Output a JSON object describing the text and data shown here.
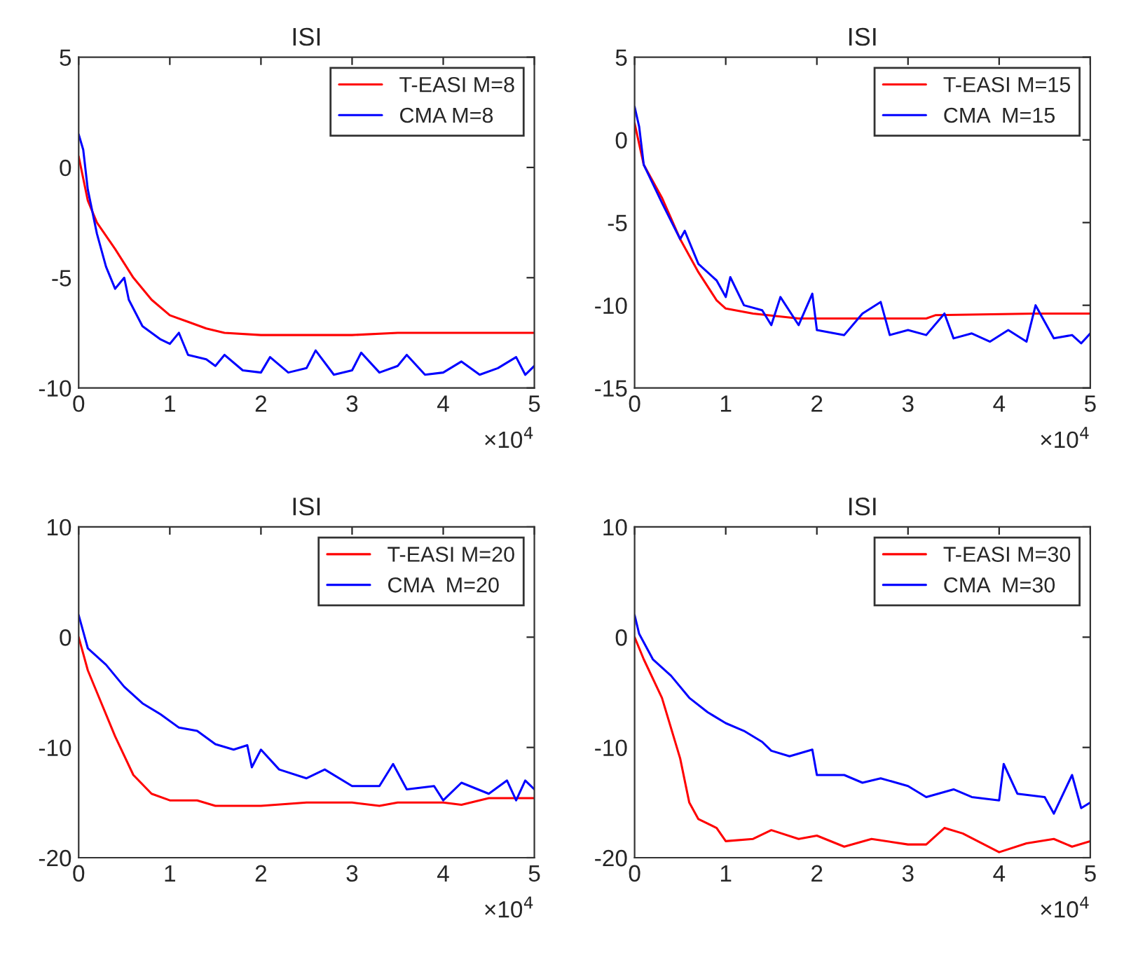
{
  "chart_data": [
    {
      "type": "line",
      "title": "ISI",
      "xlim": [
        0,
        5
      ],
      "ylim": [
        -10,
        5
      ],
      "xticks": [
        0,
        1,
        2,
        3,
        4,
        5
      ],
      "yticks": [
        -10,
        -5,
        0,
        5
      ],
      "annotations": [
        "×10$^{4}$"
      ],
      "legend": "top right",
      "grid": false,
      "series": [
        {
          "name": "T-EASI M=8",
          "color": "#ff0000",
          "x": [
            0,
            0.1,
            0.2,
            0.4,
            0.6,
            0.8,
            1,
            1.2,
            1.4,
            1.6,
            2,
            2.5,
            3,
            3.5,
            4,
            5
          ],
          "values": [
            0.5,
            -1.5,
            -2.5,
            -3.7,
            -5,
            -6,
            -6.7,
            -7,
            -7.3,
            -7.5,
            -7.6,
            -7.6,
            -7.6,
            -7.5,
            -7.5,
            -7.5
          ]
        },
        {
          "name": "CMA M=8",
          "color": "#0000ff",
          "x": [
            0,
            0.05,
            0.1,
            0.2,
            0.3,
            0.4,
            0.5,
            0.55,
            0.7,
            0.9,
            1,
            1.1,
            1.2,
            1.4,
            1.5,
            1.6,
            1.8,
            2,
            2.1,
            2.3,
            2.5,
            2.6,
            2.8,
            3,
            3.1,
            3.3,
            3.5,
            3.6,
            3.8,
            4,
            4.2,
            4.4,
            4.6,
            4.8,
            4.9,
            5
          ],
          "values": [
            1.5,
            0.8,
            -1,
            -3,
            -4.5,
            -5.5,
            -5,
            -6,
            -7.2,
            -7.8,
            -8,
            -7.5,
            -8.5,
            -8.7,
            -9,
            -8.5,
            -9.2,
            -9.3,
            -8.6,
            -9.3,
            -9.1,
            -8.3,
            -9.4,
            -9.2,
            -8.4,
            -9.3,
            -9,
            -8.5,
            -9.4,
            -9.3,
            -8.8,
            -9.4,
            -9.1,
            -8.6,
            -9.4,
            -9
          ]
        }
      ]
    },
    {
      "type": "line",
      "title": "ISI",
      "xlim": [
        0,
        5
      ],
      "ylim": [
        -15,
        5
      ],
      "xticks": [
        0,
        1,
        2,
        3,
        4,
        5
      ],
      "yticks": [
        -15,
        -10,
        -5,
        0,
        5
      ],
      "annotations": [
        "×10$^{4}$"
      ],
      "legend": "top right",
      "grid": false,
      "series": [
        {
          "name": "T-EASI M=15",
          "color": "#ff0000",
          "x": [
            0,
            0.1,
            0.3,
            0.5,
            0.7,
            0.9,
            1,
            1.3,
            1.8,
            2.5,
            3.2,
            3.3,
            4.4,
            5
          ],
          "values": [
            1,
            -1.5,
            -3.5,
            -6,
            -8,
            -9.7,
            -10.2,
            -10.5,
            -10.8,
            -10.8,
            -10.8,
            -10.6,
            -10.5,
            -10.5
          ]
        },
        {
          "name": "CMA  M=15",
          "color": "#0000ff",
          "x": [
            0,
            0.05,
            0.1,
            0.3,
            0.5,
            0.55,
            0.7,
            0.9,
            1,
            1.05,
            1.2,
            1.4,
            1.5,
            1.6,
            1.8,
            1.95,
            2,
            2.3,
            2.5,
            2.7,
            2.8,
            3,
            3.2,
            3.4,
            3.5,
            3.7,
            3.9,
            4.1,
            4.3,
            4.4,
            4.6,
            4.8,
            4.9,
            5
          ],
          "values": [
            2,
            0.8,
            -1.5,
            -3.8,
            -6,
            -5.5,
            -7.5,
            -8.5,
            -9.5,
            -8.3,
            -10,
            -10.3,
            -11.2,
            -9.5,
            -11.2,
            -9.3,
            -11.5,
            -11.8,
            -10.5,
            -9.8,
            -11.8,
            -11.5,
            -11.8,
            -10.5,
            -12,
            -11.7,
            -12.2,
            -11.5,
            -12.2,
            -10,
            -12,
            -11.8,
            -12.3,
            -11.7
          ]
        }
      ]
    },
    {
      "type": "line",
      "title": "ISI",
      "xlim": [
        0,
        5
      ],
      "ylim": [
        -20,
        10
      ],
      "xticks": [
        0,
        1,
        2,
        3,
        4,
        5
      ],
      "yticks": [
        -20,
        -10,
        0,
        10
      ],
      "annotations": [
        "×10$^{4}$"
      ],
      "legend": "top right",
      "grid": false,
      "series": [
        {
          "name": "T-EASI M=20",
          "color": "#ff0000",
          "x": [
            0,
            0.1,
            0.2,
            0.4,
            0.6,
            0.8,
            1,
            1.3,
            1.5,
            2,
            2.5,
            3,
            3.3,
            3.5,
            4,
            4.2,
            4.5,
            5
          ],
          "values": [
            0,
            -3,
            -5,
            -9,
            -12.5,
            -14.2,
            -14.8,
            -14.8,
            -15.3,
            -15.3,
            -15,
            -15,
            -15.3,
            -15,
            -15,
            -15.2,
            -14.6,
            -14.6
          ]
        },
        {
          "name": "CMA  M=20",
          "color": "#0000ff",
          "x": [
            0,
            0.05,
            0.1,
            0.3,
            0.5,
            0.7,
            0.9,
            1.1,
            1.3,
            1.5,
            1.7,
            1.85,
            1.9,
            2,
            2.2,
            2.5,
            2.7,
            3,
            3.3,
            3.45,
            3.6,
            3.9,
            4,
            4.2,
            4.5,
            4.7,
            4.8,
            4.9,
            5
          ],
          "values": [
            2,
            0.5,
            -1,
            -2.5,
            -4.5,
            -6,
            -7,
            -8.2,
            -8.5,
            -9.7,
            -10.2,
            -9.8,
            -11.8,
            -10.2,
            -12,
            -12.8,
            -12,
            -13.5,
            -13.5,
            -11.5,
            -13.8,
            -13.5,
            -14.8,
            -13.2,
            -14.2,
            -13,
            -14.8,
            -13,
            -13.8
          ]
        }
      ]
    },
    {
      "type": "line",
      "title": "ISI",
      "xlim": [
        0,
        5
      ],
      "ylim": [
        -20,
        10
      ],
      "xticks": [
        0,
        1,
        2,
        3,
        4,
        5
      ],
      "yticks": [
        -20,
        -10,
        0,
        10
      ],
      "annotations": [
        "×10$^{4}$"
      ],
      "legend": "top right",
      "grid": false,
      "series": [
        {
          "name": "T-EASI M=30",
          "color": "#ff0000",
          "x": [
            0,
            0.1,
            0.3,
            0.5,
            0.6,
            0.7,
            0.9,
            1,
            1.3,
            1.5,
            1.8,
            2,
            2.3,
            2.6,
            3,
            3.2,
            3.4,
            3.6,
            4,
            4.3,
            4.6,
            4.8,
            5
          ],
          "values": [
            0,
            -2,
            -5.5,
            -11,
            -15,
            -16.5,
            -17.3,
            -18.5,
            -18.3,
            -17.5,
            -18.3,
            -18,
            -19,
            -18.3,
            -18.8,
            -18.8,
            -17.3,
            -17.8,
            -19.5,
            -18.7,
            -18.3,
            -19,
            -18.5
          ]
        },
        {
          "name": "CMA  M=30",
          "color": "#0000ff",
          "x": [
            0,
            0.05,
            0.2,
            0.4,
            0.6,
            0.8,
            1,
            1.2,
            1.4,
            1.5,
            1.7,
            1.95,
            2,
            2.3,
            2.5,
            2.7,
            3,
            3.2,
            3.5,
            3.7,
            4,
            4.05,
            4.2,
            4.5,
            4.6,
            4.8,
            4.9,
            5
          ],
          "values": [
            2,
            0.3,
            -2,
            -3.5,
            -5.5,
            -6.8,
            -7.8,
            -8.5,
            -9.5,
            -10.3,
            -10.8,
            -10.2,
            -12.5,
            -12.5,
            -13.2,
            -12.8,
            -13.5,
            -14.5,
            -13.8,
            -14.5,
            -14.8,
            -11.5,
            -14.2,
            -14.5,
            -16,
            -12.5,
            -15.5,
            -15
          ]
        }
      ]
    }
  ]
}
